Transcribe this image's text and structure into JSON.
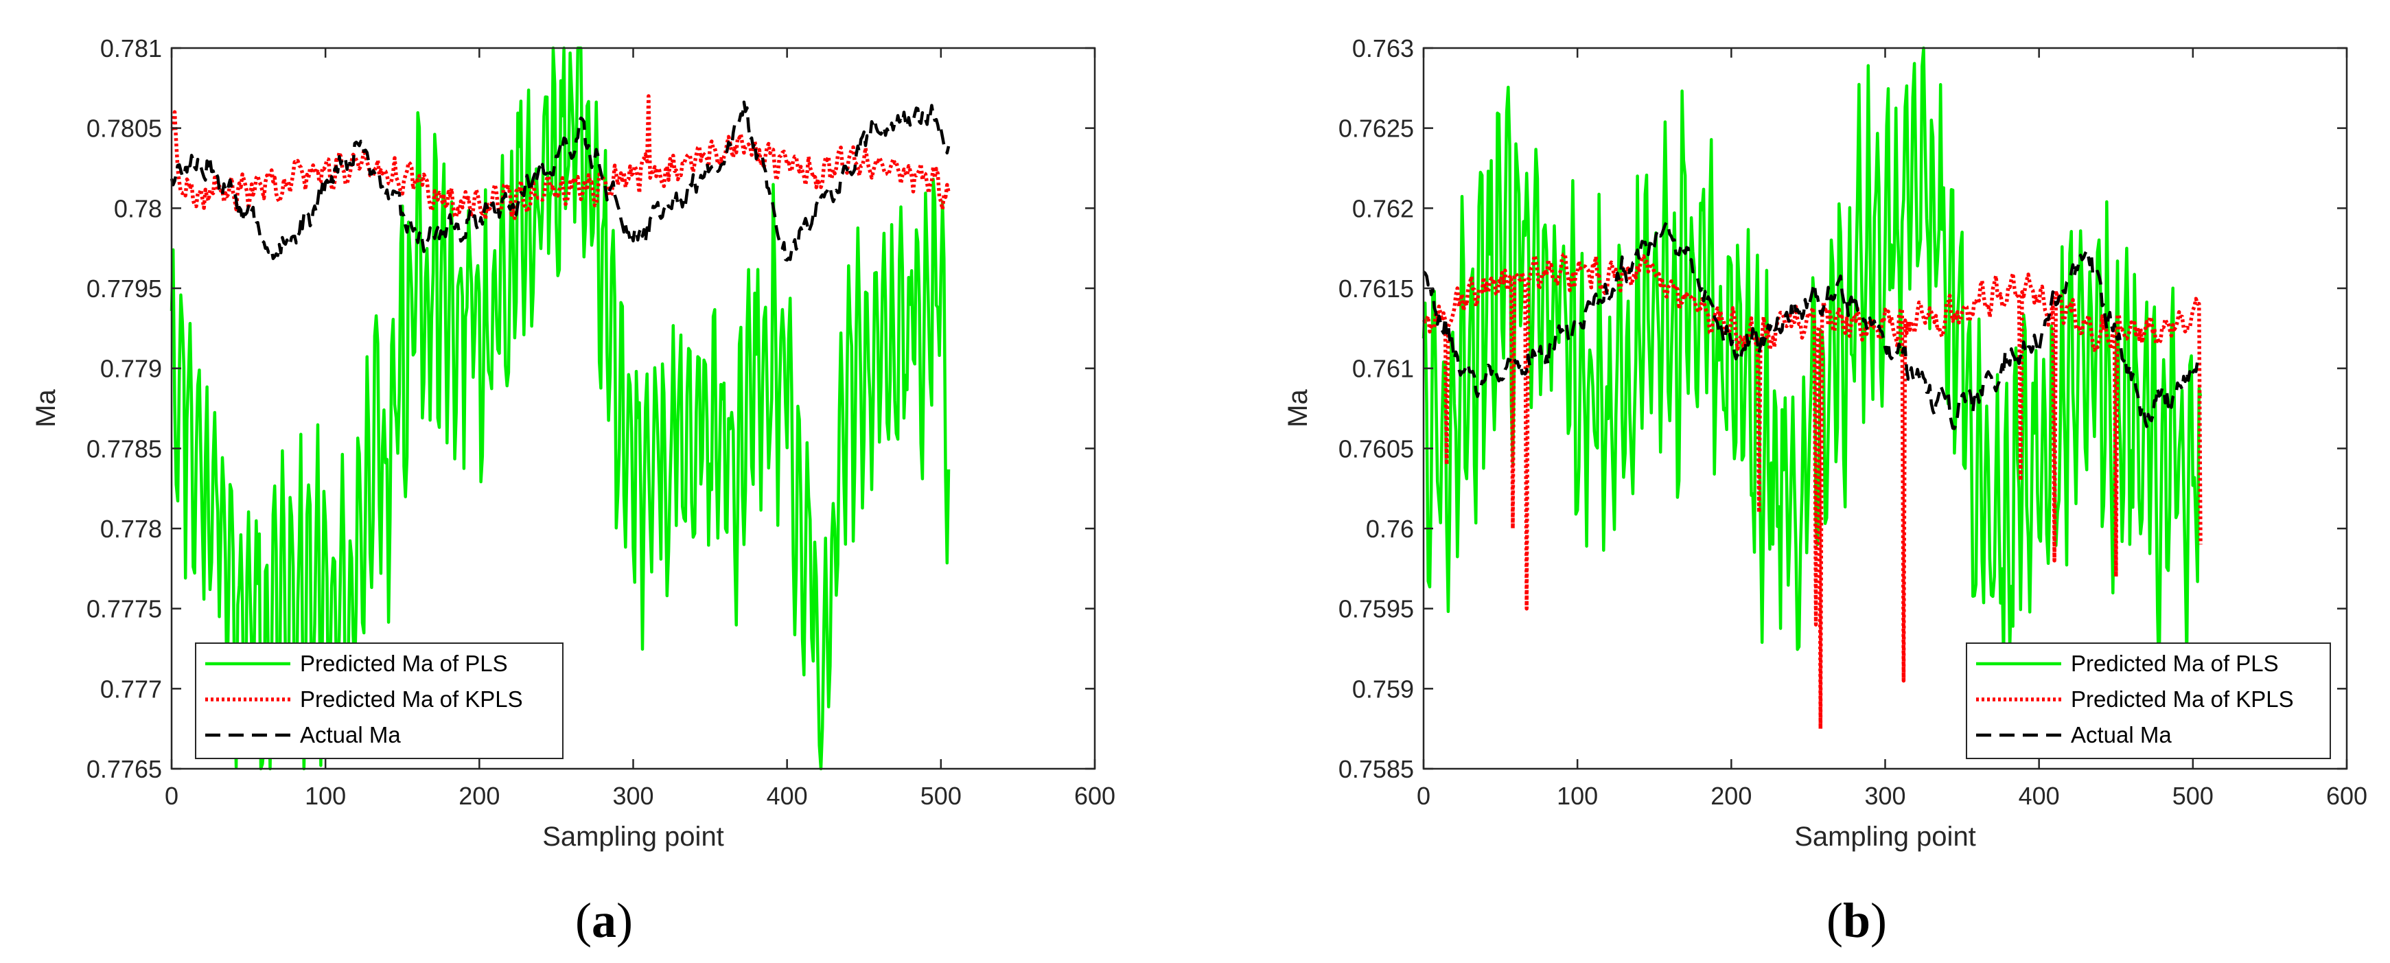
{
  "colors": {
    "pls": "#00ee00",
    "kpls": "#ff0000",
    "actual": "#000000",
    "axis": "#262626"
  },
  "chart_data": [
    {
      "type": "line",
      "panel_label": {
        "open": "(",
        "letter": "a",
        "close": ")"
      },
      "xlabel": "Sampling point",
      "ylabel": "Ma",
      "xlim": [
        0,
        600
      ],
      "ylim": [
        0.7765,
        0.781
      ],
      "xticks": [
        "0",
        "100",
        "200",
        "300",
        "400",
        "500",
        "600"
      ],
      "yticks": [
        "0.7765",
        "0.777",
        "0.7775",
        "0.778",
        "0.7785",
        "0.779",
        "0.7795",
        "0.78",
        "0.7805",
        "0.781"
      ],
      "legend_position": "bottom-left",
      "series": [
        {
          "name": "Predicted Ma of PLS",
          "style": "solid",
          "color": "#00ee00",
          "n": 506,
          "seed": 11,
          "mean": 0.77915,
          "noise": 0.00028,
          "amp": 0.00068,
          "period": 5.5,
          "anchors": [
            [
              0,
              0.7793
            ],
            [
              20,
              0.7784
            ],
            [
              52,
              0.7774
            ],
            [
              115,
              0.7776
            ],
            [
              160,
              0.7796
            ],
            [
              200,
              0.7792
            ],
            [
              265,
              0.7806
            ],
            [
              300,
              0.7783
            ],
            [
              360,
              0.7786
            ],
            [
              400,
              0.779
            ],
            [
              422,
              0.7768
            ],
            [
              440,
              0.7789
            ],
            [
              500,
              0.7795
            ],
            [
              505,
              0.779
            ]
          ]
        },
        {
          "name": "Predicted Ma of KPLS",
          "style": "dotted",
          "color": "#ff0000",
          "n": 506,
          "seed": 23,
          "mean": 0.78015,
          "noise": 6e-05,
          "amp": 5e-05,
          "period": 9,
          "anchors": [
            [
              0,
              0.7805
            ],
            [
              8,
              0.7801
            ],
            [
              50,
              0.7801
            ],
            [
              125,
              0.7803
            ],
            [
              190,
              0.78
            ],
            [
              250,
              0.7801
            ],
            [
              310,
              0.7802
            ],
            [
              370,
              0.7804
            ],
            [
              420,
              0.7802
            ],
            [
              460,
              0.7803
            ],
            [
              505,
              0.7801
            ]
          ],
          "spikes": [
            [
              2,
              0.7806
            ],
            [
              310,
              0.7807
            ]
          ]
        },
        {
          "name": "Actual Ma",
          "style": "dashed",
          "color": "#000000",
          "n": 506,
          "seed": 37,
          "mean": 0.7802,
          "noise": 6e-05,
          "amp": 3e-05,
          "period": 12,
          "anchors": [
            [
              0,
              0.7802
            ],
            [
              20,
              0.7803
            ],
            [
              70,
              0.7797
            ],
            [
              120,
              0.7804
            ],
            [
              160,
              0.7798
            ],
            [
              220,
              0.78
            ],
            [
              265,
              0.7805
            ],
            [
              300,
              0.7798
            ],
            [
              350,
              0.7802
            ],
            [
              372,
              0.7806
            ],
            [
              400,
              0.7797
            ],
            [
              430,
              0.7801
            ],
            [
              455,
              0.7805
            ],
            [
              490,
              0.7806
            ],
            [
              505,
              0.7804
            ]
          ]
        }
      ]
    },
    {
      "type": "line",
      "panel_label": {
        "open": "(",
        "letter": "b",
        "close": ")"
      },
      "xlabel": "Sampling point",
      "ylabel": "Ma",
      "xlim": [
        0,
        600
      ],
      "ylim": [
        0.7585,
        0.763
      ],
      "xticks": [
        "0",
        "100",
        "200",
        "300",
        "400",
        "500",
        "600"
      ],
      "yticks": [
        "0.7585",
        "0.759",
        "0.7595",
        "0.76",
        "0.7605",
        "0.761",
        "0.7615",
        "0.762",
        "0.7625",
        "0.763"
      ],
      "legend_position": "bottom-right",
      "series": [
        {
          "name": "Predicted Ma of PLS",
          "style": "solid",
          "color": "#00ee00",
          "n": 506,
          "seed": 51,
          "mean": 0.7611,
          "noise": 0.00035,
          "amp": 0.00075,
          "period": 6,
          "anchors": [
            [
              0,
              0.7605
            ],
            [
              60,
              0.7618
            ],
            [
              120,
              0.7608
            ],
            [
              180,
              0.7618
            ],
            [
              240,
              0.76
            ],
            [
              270,
              0.761
            ],
            [
              320,
              0.7624
            ],
            [
              360,
              0.7605
            ],
            [
              380,
              0.76
            ],
            [
              440,
              0.7612
            ],
            [
              470,
              0.7605
            ],
            [
              505,
              0.7601
            ]
          ]
        },
        {
          "name": "Predicted Ma of KPLS",
          "style": "dotted",
          "color": "#ff0000",
          "n": 506,
          "seed": 67,
          "mean": 0.7613,
          "noise": 6e-05,
          "amp": 6e-05,
          "period": 10,
          "anchors": [
            [
              0,
              0.7613
            ],
            [
              70,
              0.7616
            ],
            [
              150,
              0.7616
            ],
            [
              200,
              0.7612
            ],
            [
              260,
              0.7613
            ],
            [
              320,
              0.7613
            ],
            [
              390,
              0.7615
            ],
            [
              450,
              0.7612
            ],
            [
              505,
              0.7613
            ]
          ],
          "spikes": [
            [
              15,
              0.7604
            ],
            [
              58,
              0.76
            ],
            [
              67,
              0.7595
            ],
            [
              218,
              0.7601
            ],
            [
              255,
              0.7594
            ],
            [
              258,
              0.75875
            ],
            [
              312,
              0.75905
            ],
            [
              388,
              0.7603
            ],
            [
              410,
              0.7598
            ],
            [
              450,
              0.7597
            ],
            [
              505,
              0.7599
            ]
          ]
        },
        {
          "name": "Actual Ma",
          "style": "dashed",
          "color": "#000000",
          "n": 506,
          "seed": 79,
          "mean": 0.7612,
          "noise": 6e-05,
          "amp": 4e-05,
          "period": 14,
          "anchors": [
            [
              0,
              0.7616
            ],
            [
              30,
              0.7609
            ],
            [
              80,
              0.7611
            ],
            [
              160,
              0.7619
            ],
            [
              200,
              0.7611
            ],
            [
              270,
              0.7615
            ],
            [
              345,
              0.7607
            ],
            [
              400,
              0.7612
            ],
            [
              430,
              0.7617
            ],
            [
              470,
              0.7607
            ],
            [
              505,
              0.761
            ]
          ]
        }
      ]
    }
  ]
}
